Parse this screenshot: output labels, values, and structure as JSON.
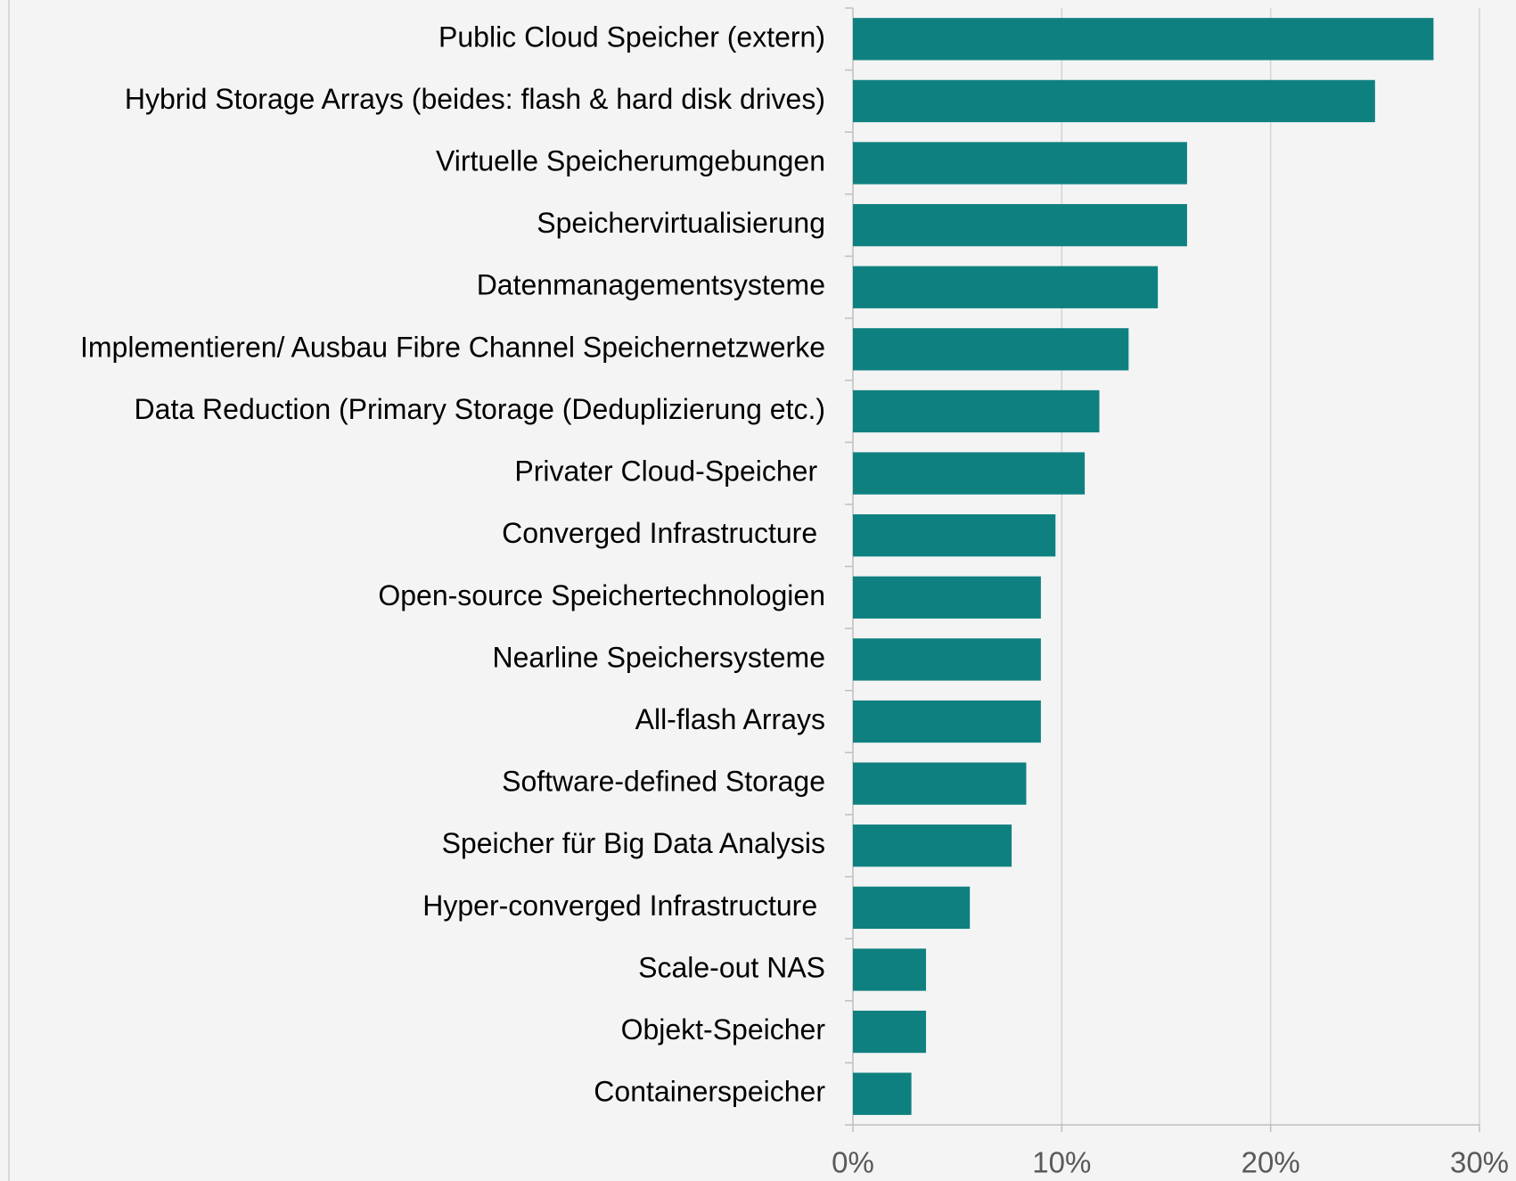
{
  "chart_data": {
    "type": "barh",
    "categories": [
      "Public Cloud Speicher (extern)",
      "Hybrid Storage Arrays (beides: flash & hard disk drives)",
      "Virtuelle Speicherumgebungen",
      "Speichervirtualisierung",
      "Datenmanagementsysteme",
      "Implementieren/ Ausbau Fibre Channel Speichernetzwerke",
      "Data Reduction (Primary Storage (Deduplizierung etc.)",
      "Privater Cloud-Speicher ",
      "Converged Infrastructure ",
      "Open-source Speichertechnologien",
      "Nearline Speichersysteme",
      "All-flash Arrays",
      "Software-defined Storage",
      "Speicher für Big Data Analysis",
      "Hyper-converged Infrastructure ",
      "Scale-out NAS",
      "Objekt-Speicher",
      "Containerspeicher"
    ],
    "values": [
      27.8,
      25.0,
      16.0,
      16.0,
      14.6,
      13.2,
      11.8,
      11.1,
      9.7,
      9.0,
      9.0,
      9.0,
      8.3,
      7.6,
      5.6,
      3.5,
      3.5,
      2.8
    ],
    "color": "#0f8080",
    "xlim": [
      0,
      30
    ],
    "xticks": [
      {
        "value": 0,
        "label": "0%"
      },
      {
        "value": 10,
        "label": "10%"
      },
      {
        "value": 20,
        "label": "20%"
      },
      {
        "value": 30,
        "label": "30%"
      }
    ],
    "grid": true
  }
}
